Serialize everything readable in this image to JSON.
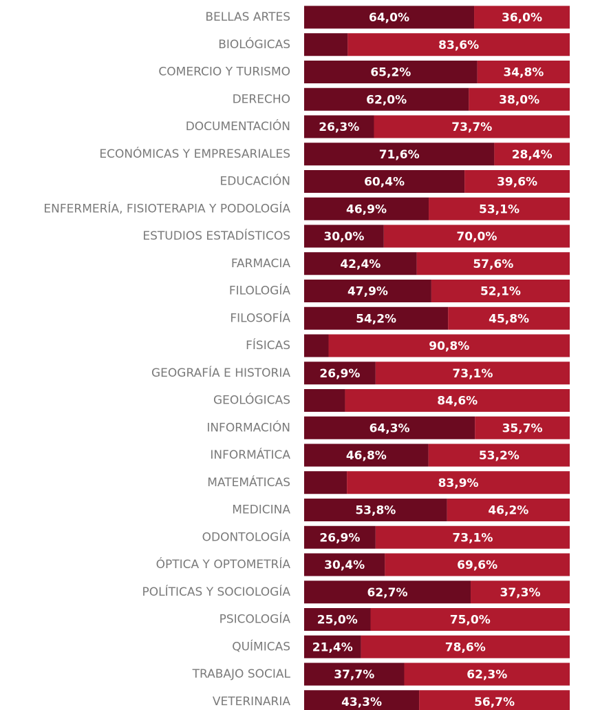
{
  "chart_data": {
    "type": "bar",
    "orientation": "horizontal",
    "stacked": "100%",
    "categories": [
      "BELLAS ARTES",
      "BIOLÓGICAS",
      "COMERCIO Y TURISMO",
      "DERECHO",
      "DOCUMENTACIÓN",
      "ECONÓMICAS Y EMPRESARIALES",
      "EDUCACIÓN",
      "ENFERMERÍA, FISIOTERAPIA Y PODOLOGÍA",
      "ESTUDIOS ESTADÍSTICOS",
      "FARMACIA",
      "FILOLOGÍA",
      "FILOSOFÍA",
      "FÍSICAS",
      "GEOGRAFÍA E HISTORIA",
      "GEOLÓGICAS",
      "INFORMACIÓN",
      "INFORMÁTICA",
      "MATEMÁTICAS",
      "MEDICINA",
      "ODONTOLOGÍA",
      "ÓPTICA Y OPTOMETRÍA",
      "POLÍTICAS Y SOCIOLOGÍA",
      "PSICOLOGÍA",
      "QUÍMICAS",
      "TRABAJO SOCIAL",
      "VETERINARIA"
    ],
    "series": [
      {
        "color": "#6b0a20",
        "values": [
          64.0,
          16.4,
          65.2,
          62.0,
          26.3,
          71.6,
          60.4,
          46.9,
          30.0,
          42.4,
          47.9,
          54.2,
          9.2,
          26.9,
          15.4,
          64.3,
          46.8,
          16.1,
          53.8,
          26.9,
          30.4,
          62.7,
          25.0,
          21.4,
          37.7,
          43.3
        ],
        "labels": [
          "64,0%",
          "",
          "65,2%",
          "62,0%",
          "26,3%",
          "71,6%",
          "60,4%",
          "46,9%",
          "30,0%",
          "42,4%",
          "47,9%",
          "54,2%",
          "",
          "26,9%",
          "",
          "64,3%",
          "46,8%",
          "",
          "53,8%",
          "26,9%",
          "30,4%",
          "62,7%",
          "25,0%",
          "21,4%",
          "37,7%",
          "43,3%"
        ]
      },
      {
        "color": "#b01a2e",
        "values": [
          36.0,
          83.6,
          34.8,
          38.0,
          73.7,
          28.4,
          39.6,
          53.1,
          70.0,
          57.6,
          52.1,
          45.8,
          90.8,
          73.1,
          84.6,
          35.7,
          53.2,
          83.9,
          46.2,
          73.1,
          69.6,
          37.3,
          75.0,
          78.6,
          62.3,
          56.7
        ],
        "labels": [
          "36,0%",
          "83,6%",
          "34,8%",
          "38,0%",
          "73,7%",
          "28,4%",
          "39,6%",
          "53,1%",
          "70,0%",
          "57,6%",
          "52,1%",
          "45,8%",
          "90,8%",
          "73,1%",
          "84,6%",
          "35,7%",
          "53,2%",
          "83,9%",
          "46,2%",
          "73,1%",
          "69,6%",
          "37,3%",
          "75,0%",
          "78,6%",
          "62,3%",
          "56,7%"
        ]
      }
    ],
    "xlim": [
      0,
      100
    ],
    "grid": false,
    "legend": "none",
    "title": "",
    "xlabel": "",
    "ylabel": ""
  }
}
